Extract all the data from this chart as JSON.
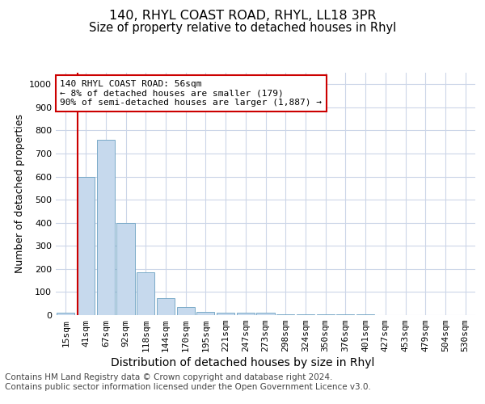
{
  "title1": "140, RHYL COAST ROAD, RHYL, LL18 3PR",
  "title2": "Size of property relative to detached houses in Rhyl",
  "xlabel": "Distribution of detached houses by size in Rhyl",
  "ylabel": "Number of detached properties",
  "categories": [
    "15sqm",
    "41sqm",
    "67sqm",
    "92sqm",
    "118sqm",
    "144sqm",
    "170sqm",
    "195sqm",
    "221sqm",
    "247sqm",
    "273sqm",
    "298sqm",
    "324sqm",
    "350sqm",
    "376sqm",
    "401sqm",
    "427sqm",
    "453sqm",
    "479sqm",
    "504sqm",
    "530sqm"
  ],
  "values": [
    10,
    600,
    760,
    400,
    185,
    75,
    35,
    15,
    12,
    10,
    10,
    5,
    5,
    3,
    2,
    2,
    1,
    1,
    1,
    1,
    1
  ],
  "bar_color": "#c6d9ed",
  "bar_edge_color": "#7aaac8",
  "vline_color": "#cc0000",
  "vline_x_index": 1,
  "annotation_text": "140 RHYL COAST ROAD: 56sqm\n← 8% of detached houses are smaller (179)\n90% of semi-detached houses are larger (1,887) →",
  "annotation_box_facecolor": "#ffffff",
  "annotation_box_edgecolor": "#cc0000",
  "ylim": [
    0,
    1050
  ],
  "yticks": [
    0,
    100,
    200,
    300,
    400,
    500,
    600,
    700,
    800,
    900,
    1000
  ],
  "footer_text": "Contains HM Land Registry data © Crown copyright and database right 2024.\nContains public sector information licensed under the Open Government Licence v3.0.",
  "bg_color": "#ffffff",
  "grid_color": "#ccd6e8",
  "title1_fontsize": 11.5,
  "title2_fontsize": 10.5,
  "xlabel_fontsize": 10,
  "ylabel_fontsize": 9,
  "tick_fontsize": 8,
  "annotation_fontsize": 8,
  "footer_fontsize": 7.5
}
